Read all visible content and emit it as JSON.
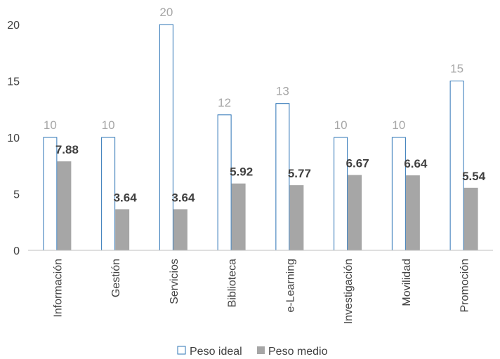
{
  "colors": {
    "ideal_stroke": "#2e75b6",
    "ideal_fill": "#ffffff",
    "medio_fill": "#a6a6a6",
    "axis": "#bfbfbf",
    "text": "#404040",
    "ideal_label": "#a6a6a6"
  },
  "chart_data": {
    "type": "bar",
    "title": "",
    "xlabel": "",
    "ylabel": "",
    "ylim": [
      0,
      20
    ],
    "yticks": [
      0,
      5,
      10,
      15,
      20
    ],
    "grid": false,
    "legend_position": "bottom",
    "categories": [
      "Información",
      "Gestión",
      "Servicios",
      "Biblioteca",
      "e-Learning",
      "Investigación",
      "Movilidad",
      "Promoción"
    ],
    "series": [
      {
        "name": "Peso ideal",
        "values": [
          10,
          10,
          20,
          12,
          13,
          10,
          10,
          15
        ]
      },
      {
        "name": "Peso medio",
        "values": [
          7.88,
          3.64,
          3.64,
          5.92,
          5.77,
          6.67,
          6.64,
          5.54
        ]
      }
    ]
  }
}
